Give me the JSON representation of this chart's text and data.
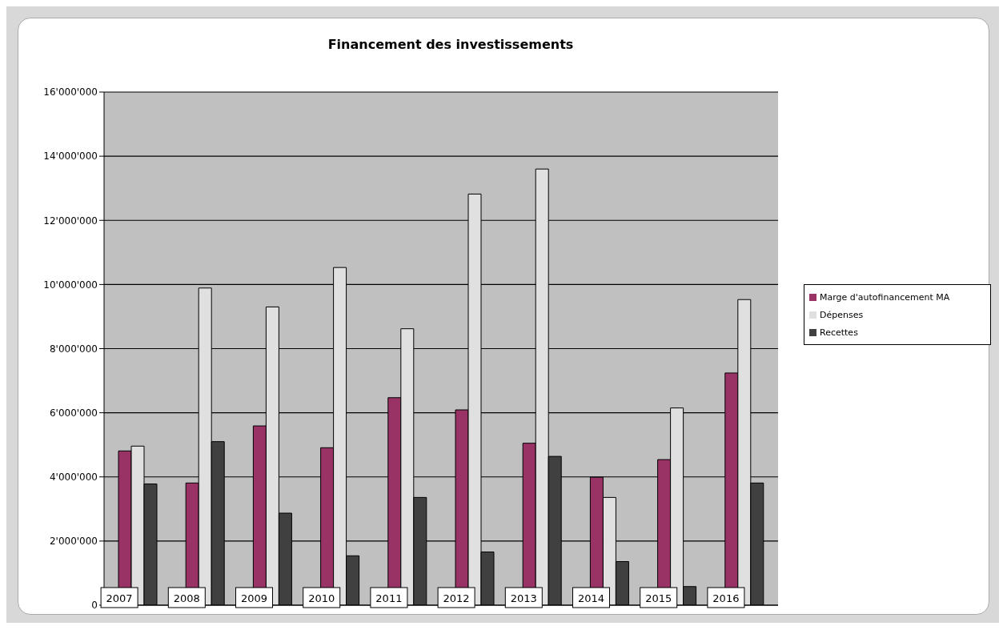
{
  "chart_data": {
    "type": "bar",
    "title": "Financement des investissements",
    "categories": [
      "2007",
      "2008",
      "2009",
      "2010",
      "2011",
      "2012",
      "2013",
      "2014",
      "2015",
      "2016"
    ],
    "series": [
      {
        "name": "Marge d'autofinancement MA",
        "color": "#993366",
        "values": [
          4810000,
          3810000,
          5590000,
          4910000,
          6470000,
          6090000,
          5050000,
          3990000,
          4540000,
          7240000
        ]
      },
      {
        "name": "Dépenses",
        "color": "#e0e0e0",
        "values": [
          4960000,
          9890000,
          9300000,
          10530000,
          8620000,
          12820000,
          13600000,
          3360000,
          6150000,
          9530000
        ]
      },
      {
        "name": "Recettes",
        "color": "#404040",
        "values": [
          3780000,
          5100000,
          2870000,
          1540000,
          3360000,
          1660000,
          4640000,
          1360000,
          580000,
          3810000
        ]
      }
    ],
    "ylim": [
      0,
      16000000
    ],
    "yticks": [
      0,
      {
        "value": 2000000,
        "label": "2'000'000"
      },
      {
        "value": 4000000,
        "label": "4'000'000"
      },
      {
        "value": 6000000,
        "label": "6'000'000"
      },
      {
        "value": 8000000,
        "label": "8'000'000"
      },
      {
        "value": 10000000,
        "label": "10'000'000"
      },
      {
        "value": 12000000,
        "label": "12'000'000"
      },
      {
        "value": 14000000,
        "label": "14'000'000"
      },
      {
        "value": 16000000,
        "label": "16'000'000"
      }
    ],
    "grid": "y",
    "legend": "right"
  }
}
